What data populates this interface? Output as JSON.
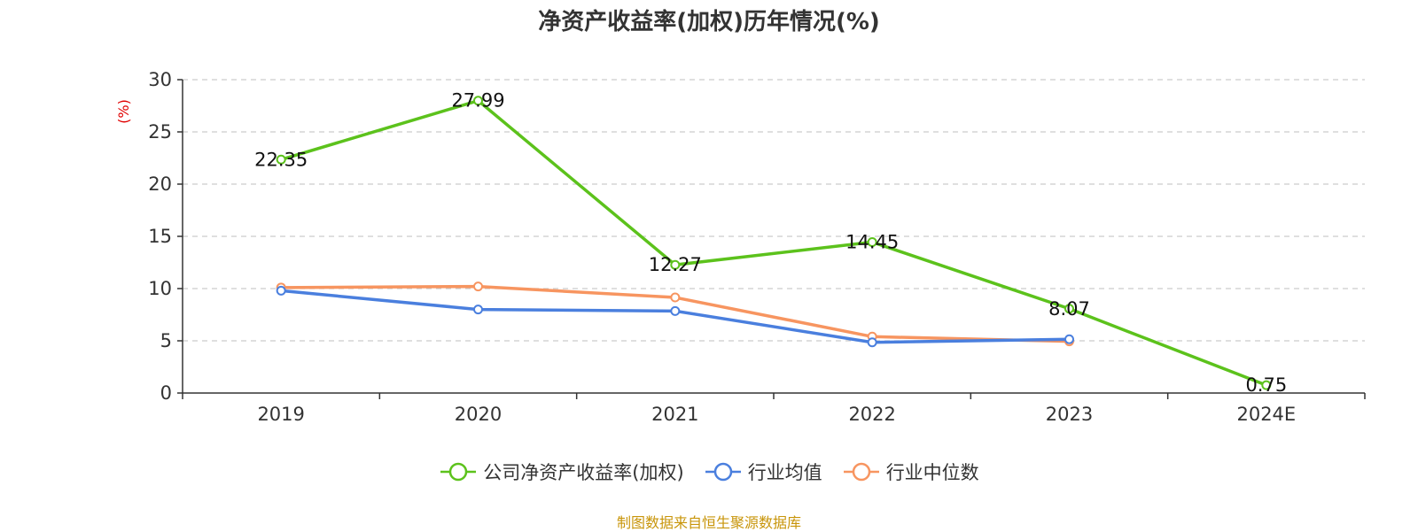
{
  "title": "净资产收益率(加权)历年情况(%)",
  "source_note": "制图数据来自恒生聚源数据库",
  "colors": {
    "company": "#5cc21c",
    "industry_avg": "#4a7fde",
    "industry_median": "#f79560",
    "unit": "#e00000",
    "source": "#c8950a"
  },
  "chart_data": {
    "type": "line",
    "title": "净资产收益率(加权)历年情况(%)",
    "ylabel": "(%)",
    "xlabel": "",
    "categories": [
      "2019",
      "2020",
      "2021",
      "2022",
      "2023",
      "2024E"
    ],
    "ylim": [
      0,
      30
    ],
    "yticks": [
      0,
      5,
      10,
      15,
      20,
      25,
      30
    ],
    "grid": true,
    "legend_position": "bottom",
    "series": [
      {
        "name": "公司净资产收益率(加权)",
        "values": [
          22.35,
          27.99,
          12.27,
          14.45,
          8.07,
          0.75
        ],
        "labels": [
          "22.35",
          "27.99",
          "12.27",
          "14.45",
          "8.07",
          "0.75"
        ],
        "color": "#5cc21c"
      },
      {
        "name": "行业均值",
        "values": [
          9.8,
          8.0,
          7.85,
          4.85,
          5.15,
          null
        ],
        "color": "#4a7fde"
      },
      {
        "name": "行业中位数",
        "values": [
          10.1,
          10.2,
          9.15,
          5.4,
          4.95,
          null
        ],
        "color": "#f79560"
      }
    ]
  }
}
